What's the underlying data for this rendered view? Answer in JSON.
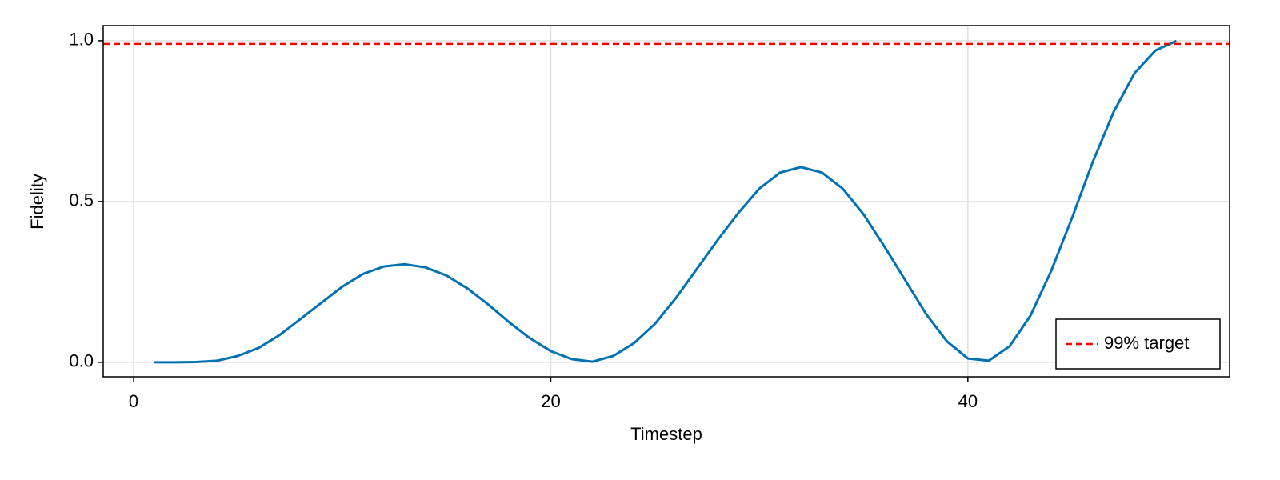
{
  "chart_data": {
    "type": "line",
    "x_label": "Timestep",
    "y_label": "Fidelity",
    "x": [
      1,
      2,
      3,
      4,
      5,
      6,
      7,
      8,
      9,
      10,
      11,
      12,
      13,
      14,
      15,
      16,
      17,
      18,
      19,
      20,
      21,
      22,
      23,
      24,
      25,
      26,
      27,
      28,
      29,
      30,
      31,
      32,
      33,
      34,
      35,
      36,
      37,
      38,
      39,
      40,
      41,
      42,
      43,
      44,
      45,
      46,
      47,
      48,
      49,
      50
    ],
    "values": [
      0,
      0,
      0.001,
      0.005,
      0.02,
      0.045,
      0.085,
      0.135,
      0.185,
      0.235,
      0.275,
      0.298,
      0.305,
      0.295,
      0.27,
      0.23,
      0.18,
      0.125,
      0.075,
      0.035,
      0.01,
      0.002,
      0.02,
      0.06,
      0.12,
      0.2,
      0.29,
      0.38,
      0.465,
      0.54,
      0.59,
      0.607,
      0.59,
      0.54,
      0.46,
      0.36,
      0.255,
      0.15,
      0.065,
      0.012,
      0.005,
      0.05,
      0.145,
      0.285,
      0.45,
      0.625,
      0.78,
      0.9,
      0.97,
      0.999
    ],
    "color": "#0072b2",
    "target": {
      "value": 0.99,
      "label": "99% target",
      "color": "#ff0000"
    },
    "xlim": [
      -1.46,
      52.55
    ],
    "ylim": [
      -0.045,
      1.047
    ],
    "xticks": [
      0,
      20,
      40
    ],
    "yticks": [
      {
        "value": 0,
        "label": "0.0"
      },
      0.5,
      {
        "value": 1,
        "label": "1.0"
      }
    ],
    "grid": true,
    "legend": "lower right"
  }
}
